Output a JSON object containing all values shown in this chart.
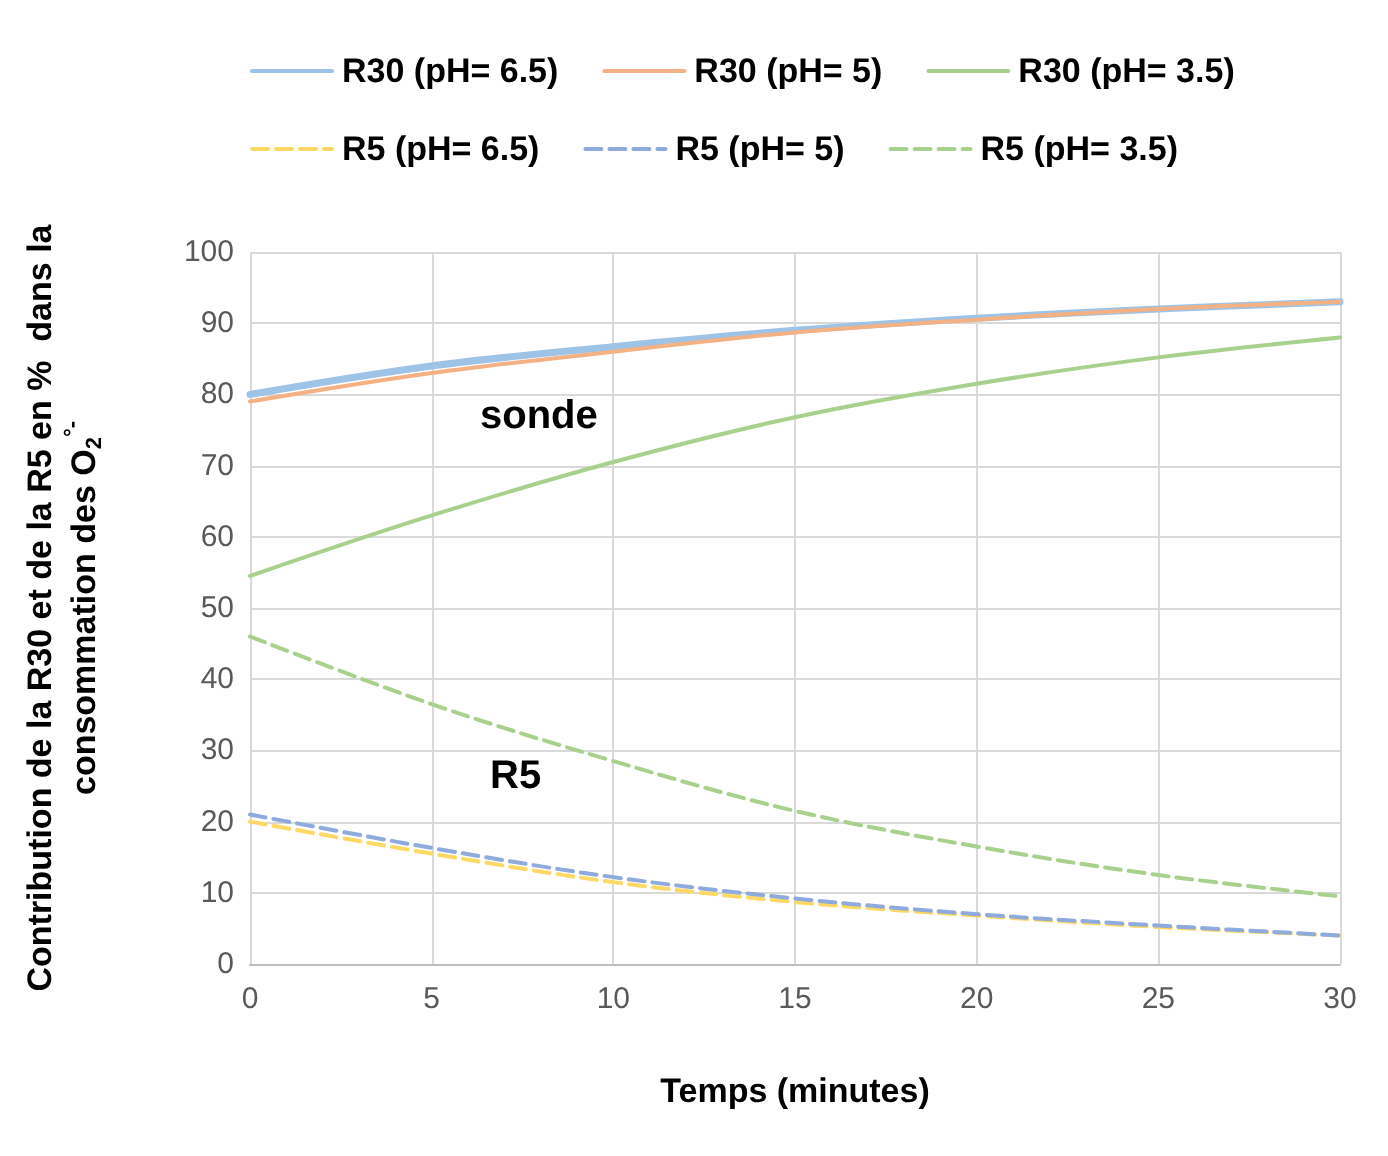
{
  "chart_data": {
    "type": "line",
    "xlabel": "Temps (minutes)",
    "ylabel": "Contribution de la R30 et de la R5 en %  dans la consommation des O$_{2}$$^{°-}$",
    "x": [
      0,
      5,
      10,
      15,
      20,
      25,
      30
    ],
    "series": [
      {
        "name": "R30 (pH= 6.5)",
        "color": "#9dc3e6",
        "line_style": "solid",
        "values": [
          80,
          84,
          86.7,
          89,
          90.7,
          92,
          93
        ]
      },
      {
        "name": "R30 (pH= 5)",
        "color": "#f4b183",
        "line_style": "solid",
        "values": [
          79,
          83,
          86,
          88.7,
          90.5,
          92,
          93
        ]
      },
      {
        "name": "R30 (pH= 3.5)",
        "color": "#a9d18e",
        "line_style": "solid",
        "values": [
          54.5,
          63,
          70.5,
          76.8,
          81.5,
          85.2,
          88
        ]
      },
      {
        "name": "R5 (pH= 6.5)",
        "color": "#ffd966",
        "line_style": "dashed",
        "values": [
          20,
          15.5,
          11.5,
          8.7,
          6.8,
          5.2,
          4
        ]
      },
      {
        "name": "R5 (pH= 5)",
        "color": "#8faadc",
        "line_style": "dashed",
        "values": [
          21,
          16.3,
          12.2,
          9.2,
          7,
          5.4,
          4
        ]
      },
      {
        "name": "R5 (pH= 3.5)",
        "color": "#a9d18e",
        "line_style": "dashed",
        "values": [
          46,
          36.5,
          28.5,
          21.5,
          16.5,
          12.5,
          9.5
        ]
      }
    ],
    "annotations": [
      "sonde",
      "R5"
    ],
    "xlim": [
      0,
      30
    ],
    "xticks": [
      0,
      5,
      10,
      15,
      20,
      25,
      30
    ],
    "ylim": [
      0,
      100
    ],
    "yticks": [
      0,
      10,
      20,
      30,
      40,
      50,
      60,
      70,
      80,
      90,
      100
    ],
    "grid": true,
    "legend": "top",
    "marker": "none"
  }
}
